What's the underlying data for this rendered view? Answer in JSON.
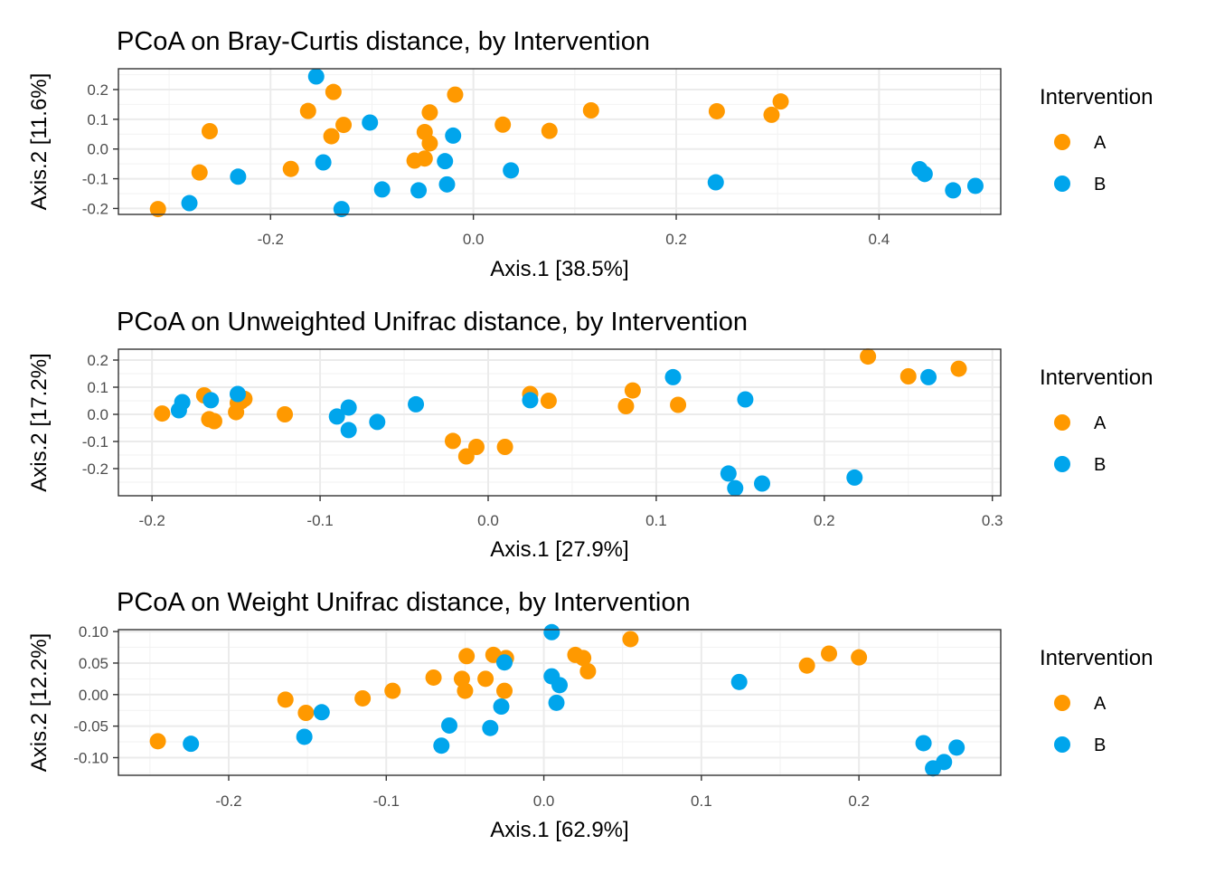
{
  "legend": {
    "title": "Intervention",
    "items": [
      {
        "label": "A",
        "color": "#FF9900"
      },
      {
        "label": "B",
        "color": "#00A5EC"
      }
    ]
  },
  "chart_data": [
    {
      "type": "scatter",
      "title": "PCoA on Bray-Curtis distance, by Intervention",
      "xlabel": "Axis.1   [38.5%]",
      "ylabel": "Axis.2   [11.6%]",
      "xlim": [
        -0.35,
        0.52
      ],
      "ylim": [
        -0.22,
        0.27
      ],
      "xticks": [
        -0.2,
        0.0,
        0.2,
        0.4
      ],
      "xtick_labels": [
        "-0.2",
        "0.0",
        "0.2",
        "0.4"
      ],
      "yticks": [
        0.2,
        0.1,
        0.0,
        -0.1,
        -0.2
      ],
      "ytick_labels": [
        "0.2",
        "0.1",
        "0.0",
        "-0.1",
        "-0.2"
      ],
      "grid": true,
      "legend_position": "right",
      "series": [
        {
          "name": "A",
          "color": "#FF9900",
          "points": [
            [
              -0.311,
              -0.202
            ],
            [
              -0.27,
              -0.079
            ],
            [
              -0.26,
              0.06
            ],
            [
              -0.18,
              -0.067
            ],
            [
              -0.163,
              0.128
            ],
            [
              -0.138,
              0.192
            ],
            [
              -0.14,
              0.043
            ],
            [
              -0.128,
              0.081
            ],
            [
              -0.058,
              -0.039
            ],
            [
              -0.048,
              0.057
            ],
            [
              -0.048,
              -0.032
            ],
            [
              -0.043,
              0.019
            ],
            [
              -0.043,
              0.123
            ],
            [
              -0.018,
              0.183
            ],
            [
              0.029,
              0.082
            ],
            [
              0.075,
              0.061
            ],
            [
              0.116,
              0.13
            ],
            [
              0.24,
              0.127
            ],
            [
              0.294,
              0.115
            ],
            [
              0.303,
              0.16
            ]
          ]
        },
        {
          "name": "B",
          "color": "#00A5EC",
          "points": [
            [
              -0.28,
              -0.182
            ],
            [
              -0.232,
              -0.093
            ],
            [
              -0.155,
              0.244
            ],
            [
              -0.148,
              -0.045
            ],
            [
              -0.13,
              -0.202
            ],
            [
              -0.102,
              0.089
            ],
            [
              -0.09,
              -0.136
            ],
            [
              -0.054,
              -0.139
            ],
            [
              -0.028,
              -0.041
            ],
            [
              -0.026,
              -0.119
            ],
            [
              -0.02,
              0.045
            ],
            [
              0.037,
              -0.072
            ],
            [
              0.239,
              -0.112
            ],
            [
              0.44,
              -0.068
            ],
            [
              0.445,
              -0.084
            ],
            [
              0.473,
              -0.139
            ],
            [
              0.495,
              -0.124
            ]
          ]
        }
      ]
    },
    {
      "type": "scatter",
      "title": "PCoA on Unweighted Unifrac distance, by Intervention",
      "xlabel": "Axis.1   [27.9%]",
      "ylabel": "Axis.2   [17.2%]",
      "xlim": [
        -0.22,
        0.305
      ],
      "ylim": [
        -0.3,
        0.24
      ],
      "xticks": [
        -0.2,
        -0.1,
        0.0,
        0.1,
        0.2,
        0.3
      ],
      "xtick_labels": [
        "-0.2",
        "-0.1",
        "0.0",
        "0.1",
        "0.2",
        "0.3"
      ],
      "yticks": [
        0.2,
        0.1,
        0.0,
        -0.1,
        -0.2
      ],
      "ytick_labels": [
        "0.2",
        "0.1",
        "0.0",
        "-0.1",
        "-0.2"
      ],
      "grid": true,
      "legend_position": "right",
      "series": [
        {
          "name": "A",
          "color": "#FF9900",
          "points": [
            [
              -0.194,
              0.003
            ],
            [
              -0.169,
              0.07
            ],
            [
              -0.166,
              -0.018
            ],
            [
              -0.163,
              -0.025
            ],
            [
              -0.15,
              0.008
            ],
            [
              -0.149,
              0.042
            ],
            [
              -0.147,
              0.048
            ],
            [
              -0.145,
              0.057
            ],
            [
              -0.121,
              0.0
            ],
            [
              -0.021,
              -0.098
            ],
            [
              -0.013,
              -0.155
            ],
            [
              -0.007,
              -0.12
            ],
            [
              0.01,
              -0.12
            ],
            [
              0.025,
              0.075
            ],
            [
              0.036,
              0.05
            ],
            [
              0.082,
              0.03
            ],
            [
              0.086,
              0.088
            ],
            [
              0.113,
              0.035
            ],
            [
              0.226,
              0.213
            ],
            [
              0.25,
              0.14
            ],
            [
              0.28,
              0.168
            ]
          ]
        },
        {
          "name": "B",
          "color": "#00A5EC",
          "points": [
            [
              -0.184,
              0.015
            ],
            [
              -0.182,
              0.045
            ],
            [
              -0.165,
              0.052
            ],
            [
              -0.149,
              0.075
            ],
            [
              -0.09,
              -0.008
            ],
            [
              -0.083,
              0.025
            ],
            [
              -0.083,
              -0.058
            ],
            [
              -0.066,
              -0.028
            ],
            [
              -0.043,
              0.037
            ],
            [
              0.025,
              0.052
            ],
            [
              0.11,
              0.137
            ],
            [
              0.143,
              -0.218
            ],
            [
              0.147,
              -0.272
            ],
            [
              0.153,
              0.055
            ],
            [
              0.163,
              -0.255
            ],
            [
              0.218,
              -0.233
            ],
            [
              0.262,
              0.137
            ]
          ]
        }
      ]
    },
    {
      "type": "scatter",
      "title": "PCoA on Weight Unifrac distance, by Intervention",
      "xlabel": "Axis.1   [62.9%]",
      "ylabel": "Axis.2   [12.2%]",
      "xlim": [
        -0.27,
        0.29
      ],
      "ylim": [
        -0.128,
        0.103
      ],
      "xticks": [
        -0.2,
        -0.1,
        0.0,
        0.1,
        0.2
      ],
      "xtick_labels": [
        "-0.2",
        "-0.1",
        "0.0",
        "0.1",
        "0.2"
      ],
      "yticks": [
        0.1,
        0.05,
        0.0,
        -0.05,
        -0.1
      ],
      "ytick_labels": [
        "0.10",
        "0.05",
        "0.00",
        "-0.05",
        "-0.10"
      ],
      "grid": true,
      "legend_position": "right",
      "series": [
        {
          "name": "A",
          "color": "#FF9900",
          "points": [
            [
              -0.245,
              -0.074
            ],
            [
              -0.164,
              -0.008
            ],
            [
              -0.151,
              -0.029
            ],
            [
              -0.115,
              -0.006
            ],
            [
              -0.096,
              0.006
            ],
            [
              -0.07,
              0.027
            ],
            [
              -0.052,
              0.025
            ],
            [
              -0.05,
              0.006
            ],
            [
              -0.049,
              0.061
            ],
            [
              -0.037,
              0.025
            ],
            [
              -0.032,
              0.063
            ],
            [
              -0.024,
              0.058
            ],
            [
              -0.025,
              0.006
            ],
            [
              0.02,
              0.063
            ],
            [
              0.025,
              0.058
            ],
            [
              0.028,
              0.037
            ],
            [
              0.055,
              0.088
            ],
            [
              0.167,
              0.046
            ],
            [
              0.181,
              0.065
            ],
            [
              0.2,
              0.059
            ]
          ]
        },
        {
          "name": "B",
          "color": "#00A5EC",
          "points": [
            [
              -0.224,
              -0.078
            ],
            [
              -0.152,
              -0.067
            ],
            [
              -0.141,
              -0.028
            ],
            [
              -0.065,
              -0.081
            ],
            [
              -0.06,
              -0.049
            ],
            [
              -0.034,
              -0.053
            ],
            [
              -0.027,
              -0.019
            ],
            [
              -0.025,
              0.051
            ],
            [
              0.005,
              0.099
            ],
            [
              0.005,
              0.029
            ],
            [
              0.008,
              -0.013
            ],
            [
              0.01,
              0.015
            ],
            [
              0.124,
              0.02
            ],
            [
              0.241,
              -0.077
            ],
            [
              0.247,
              -0.117
            ],
            [
              0.254,
              -0.107
            ],
            [
              0.262,
              -0.084
            ]
          ]
        }
      ]
    }
  ]
}
